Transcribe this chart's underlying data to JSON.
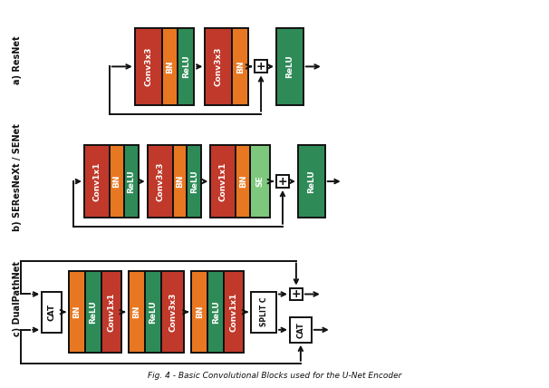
{
  "colors": {
    "red": "#C0392B",
    "orange": "#E87722",
    "green_dark": "#2E8B57",
    "green_light": "#7DC87D",
    "white": "#FFFFFF",
    "black": "#111111",
    "bg": "#FFFFFF"
  },
  "label_a": "a) ResNet",
  "label_b": "b) SEResNeXt / SENet",
  "label_c": "c) DualPathNet",
  "caption": "Fig. 4 - Basic Convolutional Blocks used for the U-Net Encoder"
}
